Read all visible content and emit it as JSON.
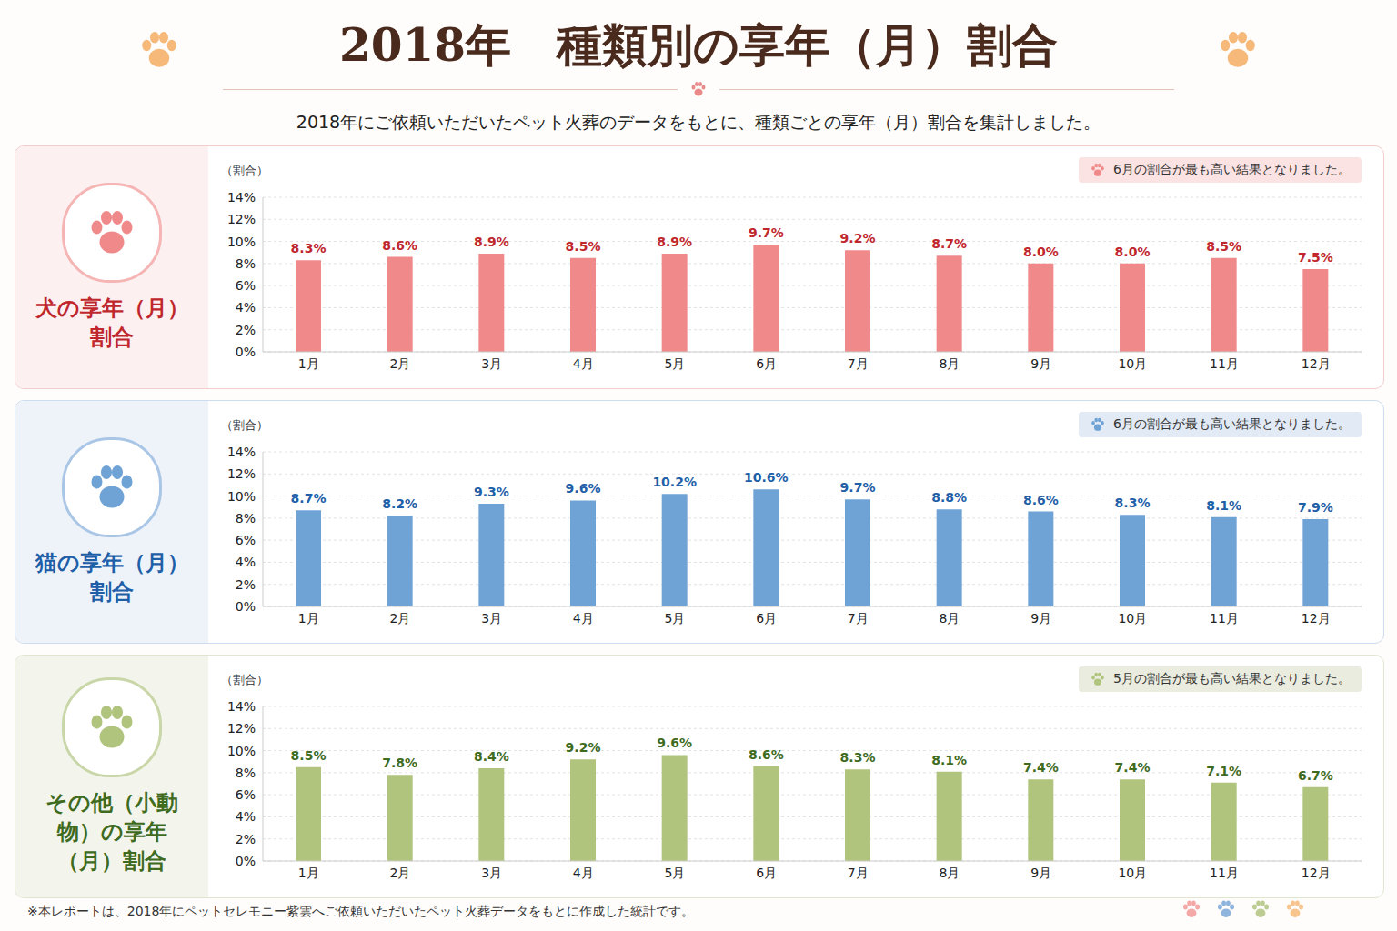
{
  "title": "2018年　種類別の享年（月）割合",
  "subtitle": "2018年にご依頼いただいたペット火葬のデータをもとに、種類ごとの享年（月）割合を集計しました。",
  "footnote": "※本レポートは、2018年にペットセレモニー紫雲へご依頼いただいたペット火葬データをもとに作成した統計です。",
  "chart_data": [
    {
      "type": "bar",
      "title": "犬の享年（月）割合",
      "annotation": "6月の割合が最も高い結果となりました。",
      "y_label": "（割合）",
      "categories": [
        "1月",
        "2月",
        "3月",
        "4月",
        "5月",
        "6月",
        "7月",
        "8月",
        "9月",
        "10月",
        "11月",
        "12月"
      ],
      "values": [
        8.3,
        8.6,
        8.9,
        8.5,
        8.9,
        9.7,
        9.2,
        8.7,
        8.0,
        8.0,
        8.5,
        7.5
      ],
      "value_labels": [
        "8.3%",
        "8.6%",
        "8.9%",
        "8.5%",
        "8.9%",
        "9.7%",
        "9.2%",
        "8.7%",
        "8.0%",
        "8.0%",
        "8.5%",
        "7.5%"
      ],
      "color": "#f08a8a",
      "ylim": [
        0,
        14
      ],
      "yticks": [
        {
          "value": 0,
          "label": "0%"
        },
        {
          "value": 2,
          "label": "2%"
        },
        {
          "value": 4,
          "label": "4%"
        },
        {
          "value": 6,
          "label": "6%"
        },
        {
          "value": 8,
          "label": "8%"
        },
        {
          "value": 10,
          "label": "10%"
        },
        {
          "value": 12,
          "label": "12%"
        },
        {
          "value": 14,
          "label": "14%"
        }
      ],
      "grid": true,
      "data_labels": true
    },
    {
      "type": "bar",
      "title": "猫の享年（月）割合",
      "annotation": "6月の割合が最も高い結果となりました。",
      "y_label": "（割合）",
      "categories": [
        "1月",
        "2月",
        "3月",
        "4月",
        "5月",
        "6月",
        "7月",
        "8月",
        "9月",
        "10月",
        "11月",
        "12月"
      ],
      "values": [
        8.7,
        8.2,
        9.3,
        9.6,
        10.2,
        10.6,
        9.7,
        8.8,
        8.6,
        8.3,
        8.1,
        7.9
      ],
      "value_labels": [
        "8.7%",
        "8.2%",
        "9.3%",
        "9.6%",
        "10.2%",
        "10.6%",
        "9.7%",
        "8.8%",
        "8.6%",
        "8.3%",
        "8.1%",
        "7.9%"
      ],
      "color": "#6fa3d6",
      "ylim": [
        0,
        14
      ],
      "yticks": [
        {
          "value": 0,
          "label": "0%"
        },
        {
          "value": 2,
          "label": "2%"
        },
        {
          "value": 4,
          "label": "4%"
        },
        {
          "value": 6,
          "label": "6%"
        },
        {
          "value": 8,
          "label": "8%"
        },
        {
          "value": 10,
          "label": "10%"
        },
        {
          "value": 12,
          "label": "12%"
        },
        {
          "value": 14,
          "label": "14%"
        }
      ],
      "grid": true,
      "data_labels": true
    },
    {
      "type": "bar",
      "title": "その他（小動物）の享年（月）割合",
      "annotation": "5月の割合が最も高い結果となりました。",
      "y_label": "（割合）",
      "categories": [
        "1月",
        "2月",
        "3月",
        "4月",
        "5月",
        "6月",
        "7月",
        "8月",
        "9月",
        "10月",
        "11月",
        "12月"
      ],
      "values": [
        8.5,
        7.8,
        8.4,
        9.2,
        9.6,
        8.6,
        8.3,
        8.1,
        7.4,
        7.4,
        7.1,
        6.7
      ],
      "value_labels": [
        "8.5%",
        "7.8%",
        "8.4%",
        "9.2%",
        "9.6%",
        "8.6%",
        "8.3%",
        "8.1%",
        "7.4%",
        "7.4%",
        "7.1%",
        "6.7%"
      ],
      "color": "#b0c47e",
      "ylim": [
        0,
        14
      ],
      "yticks": [
        {
          "value": 0,
          "label": "0%"
        },
        {
          "value": 2,
          "label": "2%"
        },
        {
          "value": 4,
          "label": "4%"
        },
        {
          "value": 6,
          "label": "6%"
        },
        {
          "value": 8,
          "label": "8%"
        },
        {
          "value": 10,
          "label": "10%"
        },
        {
          "value": 12,
          "label": "12%"
        },
        {
          "value": 14,
          "label": "14%"
        }
      ],
      "grid": true,
      "data_labels": true
    }
  ]
}
